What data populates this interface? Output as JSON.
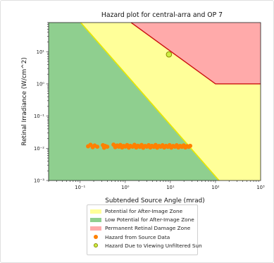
{
  "chart_data": {
    "type": "scatter",
    "title": "Hazard plot for central-arra and OP 7",
    "xlabel": "Subtended Source Angle (mrad)",
    "ylabel": "Retinal Irradiance (W/cm^2)",
    "xscale": "log",
    "yscale": "log",
    "xlim": [
      0.02,
      1000
    ],
    "ylim": [
      0.001,
      80
    ],
    "x_ticks": [
      0.1,
      1,
      10,
      100,
      1000
    ],
    "x_tick_labels": [
      "10⁻¹",
      "10⁰",
      "10¹",
      "10²",
      "10³"
    ],
    "y_ticks": [
      0.001,
      0.01,
      0.1,
      1,
      10
    ],
    "y_tick_labels": [
      "10⁻³",
      "10⁻²",
      "10⁻¹",
      "10⁰",
      "10¹"
    ],
    "grid": false,
    "legend_position": "below plot",
    "regions": [
      {
        "name": "Potential for After-Image Zone",
        "color": "#ffff99",
        "boundary": "above low-potential line, below permanent damage line"
      },
      {
        "name": "Low Potential for After-Image Zone",
        "color": "#8fcf8f",
        "boundary_line": [
          [
            0.02,
            1100
          ],
          [
            120,
            0.001
          ]
        ]
      },
      {
        "name": "Permanent Retinal Damage Zone",
        "color": "#ffaaaa",
        "boundary_line": [
          [
            1.35,
            80
          ],
          [
            100,
            1
          ],
          [
            1000,
            1
          ]
        ]
      }
    ],
    "series": [
      {
        "name": "Hazard from Source Data",
        "color": "#ff8000",
        "points": [
          [
            0.15,
            0.0115
          ],
          [
            0.17,
            0.0128
          ],
          [
            0.19,
            0.0108
          ],
          [
            0.21,
            0.0122
          ],
          [
            0.24,
            0.0112
          ],
          [
            0.32,
            0.0125
          ],
          [
            0.34,
            0.0104
          ],
          [
            0.36,
            0.0118
          ],
          [
            0.4,
            0.0112
          ],
          [
            0.55,
            0.013
          ],
          [
            0.6,
            0.0108
          ],
          [
            0.66,
            0.0122
          ],
          [
            0.72,
            0.0112
          ],
          [
            0.78,
            0.0127
          ],
          [
            0.85,
            0.0106
          ],
          [
            0.92,
            0.0118
          ],
          [
            1.0,
            0.0113
          ],
          [
            1.1,
            0.0126
          ],
          [
            1.2,
            0.0105
          ],
          [
            1.3,
            0.0119
          ],
          [
            1.45,
            0.0112
          ],
          [
            1.6,
            0.0128
          ],
          [
            1.75,
            0.0106
          ],
          [
            1.9,
            0.012
          ],
          [
            2.1,
            0.0111
          ],
          [
            2.3,
            0.0127
          ],
          [
            2.5,
            0.0104
          ],
          [
            2.75,
            0.0118
          ],
          [
            3.0,
            0.0112
          ],
          [
            3.3,
            0.0125
          ],
          [
            3.6,
            0.0106
          ],
          [
            3.9,
            0.0119
          ],
          [
            4.3,
            0.0111
          ],
          [
            4.7,
            0.0127
          ],
          [
            5.1,
            0.0105
          ],
          [
            5.6,
            0.0118
          ],
          [
            6.1,
            0.0112
          ],
          [
            6.7,
            0.0124
          ],
          [
            7.3,
            0.0106
          ],
          [
            8.0,
            0.0119
          ],
          [
            8.8,
            0.0111
          ],
          [
            9.6,
            0.0125
          ],
          [
            10.5,
            0.0105
          ],
          [
            11.5,
            0.0118
          ],
          [
            12.6,
            0.0112
          ],
          [
            13.8,
            0.0124
          ],
          [
            15.0,
            0.0106
          ],
          [
            16.5,
            0.0118
          ],
          [
            18.0,
            0.0111
          ],
          [
            19.7,
            0.0123
          ],
          [
            21.5,
            0.0106
          ],
          [
            23.5,
            0.0117
          ],
          [
            25.5,
            0.0111
          ],
          [
            27.5,
            0.0119
          ]
        ]
      },
      {
        "name": "Hazard Due to Viewing Unfiltered Sun",
        "color": "#ccee44",
        "edge": "#8a8a00",
        "points": [
          [
            9.3,
            8.2
          ]
        ]
      }
    ]
  }
}
